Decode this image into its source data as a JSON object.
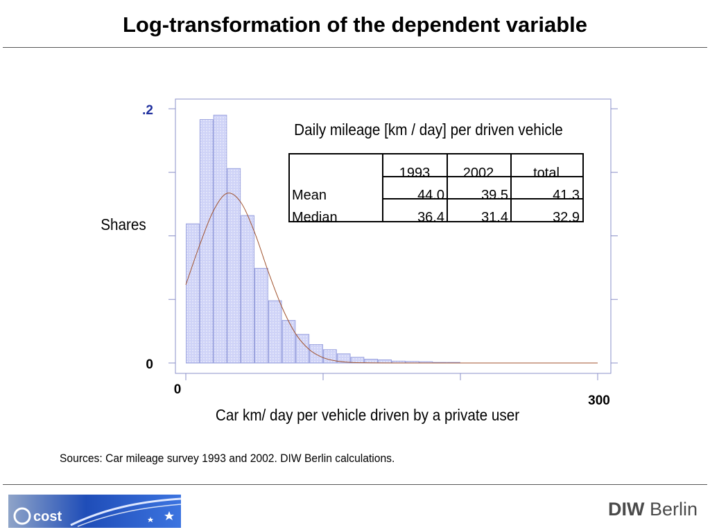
{
  "slide": {
    "title": "Log-transformation of the dependent variable",
    "sources": "Sources: Car mileage survey 1993 and 2002. DIW Berlin calculations."
  },
  "logos": {
    "left_logo_text": "cost",
    "right_logo_bold": "DIW",
    "right_logo_text": " Berlin"
  },
  "colors": {
    "bar_fill": "#cfd3f7",
    "bar_stroke": "#8a93d8",
    "bar_dot": "#ffffff",
    "curve": "#a0522d",
    "axis": "#8a8fc8",
    "tick_label_y": "#1f2f9e",
    "tick_label_x": "#000000"
  },
  "chart_data": {
    "type": "bar",
    "subtype": "histogram with fitted normal density curve",
    "xlabel": "Car km/ day per vehicle driven by a private user",
    "ylabel": "Shares",
    "xlim": [
      0,
      300
    ],
    "ylim": [
      0,
      0.2
    ],
    "x_tick_labels": [
      {
        "value": 0,
        "label": "0"
      },
      {
        "value": 300,
        "label": "300"
      }
    ],
    "y_tick_labels": [
      {
        "value": 0,
        "label": "0"
      },
      {
        "value": 0.2,
        "label": ".2"
      }
    ],
    "bin_width": 10,
    "bins_start": [
      0,
      10,
      20,
      30,
      40,
      50,
      60,
      70,
      80,
      90,
      100,
      110,
      120,
      130,
      140,
      150,
      160,
      170,
      180,
      190
    ],
    "values": [
      0.1095,
      0.1915,
      0.195,
      0.153,
      0.116,
      0.0745,
      0.049,
      0.0335,
      0.0225,
      0.0145,
      0.0105,
      0.0072,
      0.0045,
      0.003,
      0.0025,
      0.0015,
      0.0012,
      0.001,
      0.0005,
      0.0005
    ],
    "curve": {
      "name": "",
      "x": [
        0,
        10,
        20,
        30,
        40,
        50,
        60,
        70,
        80,
        90,
        100,
        110,
        120,
        130,
        140,
        160,
        180,
        200,
        250,
        300
      ],
      "y": [
        0.0615,
        0.0925,
        0.1195,
        0.1335,
        0.1265,
        0.103,
        0.072,
        0.044,
        0.023,
        0.0105,
        0.0042,
        0.0015,
        0.0005,
        0.0002,
        0.0001,
        0.0,
        0.0,
        0.0,
        0.0,
        0.0
      ]
    },
    "annotation_title": "Daily mileage [km / day] per driven vehicle",
    "table": {
      "columns": [
        "",
        "1993",
        "2002",
        "total"
      ],
      "rows": [
        {
          "label": "Mean",
          "values": [
            "44.0",
            "39.5",
            "41.3"
          ]
        },
        {
          "label": "Median",
          "values": [
            "36.4",
            "31.4",
            "32.9"
          ]
        }
      ]
    },
    "grid": false,
    "legend": "none"
  }
}
